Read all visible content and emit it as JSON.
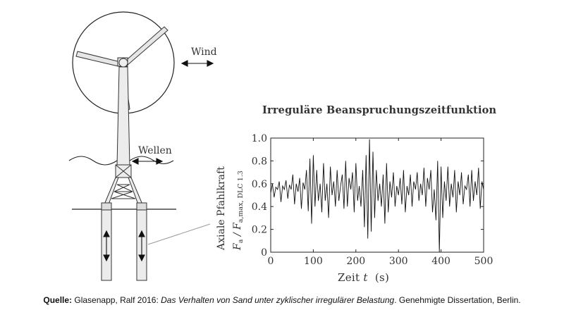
{
  "diagram": {
    "wind_label": "Wind",
    "waves_label": "Wellen"
  },
  "chart_data": {
    "type": "line",
    "title": "Irreguläre Beanspruchungszeitfunktion",
    "xlabel_prefix": "Zeit ",
    "xlabel_var": "t",
    "xlabel_unit": "(s)",
    "ylabel_line1": "Axiale Pfahlkraft",
    "ylabel_line2_main": "F",
    "ylabel_line2_sub1": "a",
    "ylabel_line2_mid": " / F",
    "ylabel_line2_sub2": "a,max, DLC 1.3",
    "xlim": [
      0,
      500
    ],
    "ylim": [
      0,
      1.0
    ],
    "x_ticks": [
      "0",
      "100",
      "200",
      "300",
      "400",
      "500"
    ],
    "y_ticks": [
      "0",
      "0.2",
      "0.4",
      "0.6",
      "0.8",
      "1.0"
    ],
    "series": [
      {
        "x": [
          0,
          4,
          8,
          12,
          16,
          20,
          24,
          28,
          32,
          36,
          40,
          44,
          48,
          52,
          56,
          60,
          64,
          68,
          72,
          76,
          80,
          84,
          88,
          92,
          96,
          100,
          104,
          108,
          112,
          116,
          120,
          124,
          128,
          132,
          136,
          140,
          144,
          148,
          152,
          156,
          160,
          164,
          168,
          172,
          176,
          180,
          184,
          188,
          192,
          196,
          200,
          204,
          208,
          212,
          216,
          220,
          224,
          228,
          232,
          236,
          240,
          244,
          248,
          252,
          256,
          260,
          264,
          268,
          272,
          276,
          280,
          284,
          288,
          292,
          296,
          300,
          304,
          308,
          312,
          316,
          320,
          324,
          328,
          332,
          336,
          340,
          344,
          348,
          352,
          356,
          360,
          364,
          368,
          372,
          376,
          380,
          384,
          388,
          392,
          396,
          400,
          404,
          408,
          412,
          416,
          420,
          424,
          428,
          432,
          436,
          440,
          444,
          448,
          452,
          456,
          460,
          464,
          468,
          472,
          476,
          480,
          484,
          488,
          492,
          496,
          500
        ],
        "y": [
          0.52,
          0.6,
          0.48,
          0.57,
          0.55,
          0.62,
          0.44,
          0.58,
          0.55,
          0.63,
          0.47,
          0.59,
          0.55,
          0.68,
          0.42,
          0.6,
          0.53,
          0.65,
          0.38,
          0.61,
          0.55,
          0.72,
          0.36,
          0.82,
          0.25,
          0.85,
          0.4,
          0.72,
          0.45,
          0.6,
          0.35,
          0.78,
          0.45,
          0.6,
          0.3,
          0.75,
          0.5,
          0.62,
          0.4,
          0.72,
          0.45,
          0.58,
          0.68,
          0.38,
          0.8,
          0.4,
          0.65,
          0.55,
          0.7,
          0.35,
          0.78,
          0.45,
          0.58,
          0.4,
          0.72,
          0.22,
          0.85,
          0.12,
          0.99,
          0.18,
          0.88,
          0.3,
          0.72,
          0.45,
          0.6,
          0.4,
          0.68,
          0.25,
          0.78,
          0.35,
          0.62,
          0.48,
          0.7,
          0.4,
          0.58,
          0.5,
          0.65,
          0.42,
          0.72,
          0.35,
          0.58,
          0.5,
          0.68,
          0.4,
          0.62,
          0.55,
          0.7,
          0.45,
          0.6,
          0.5,
          0.74,
          0.4,
          0.65,
          0.55,
          0.72,
          0.35,
          0.55,
          0.28,
          0.8,
          0.0,
          0.75,
          0.3,
          0.62,
          0.45,
          0.75,
          0.4,
          0.6,
          0.48,
          0.72,
          0.35,
          0.62,
          0.5,
          0.7,
          0.42,
          0.58,
          0.55,
          0.68,
          0.4,
          0.72,
          0.45,
          0.62,
          0.5,
          0.74,
          0.38,
          0.62,
          0.55
        ]
      }
    ],
    "grid": false
  },
  "caption": {
    "source_label": "Quelle:",
    "author": " Glasenapp, Ralf 2016: ",
    "work_title": "Das Verhalten von Sand unter zyklischer irregulärer Belastung",
    "rest": ". Genehmigte Dissertation, Berlin."
  }
}
